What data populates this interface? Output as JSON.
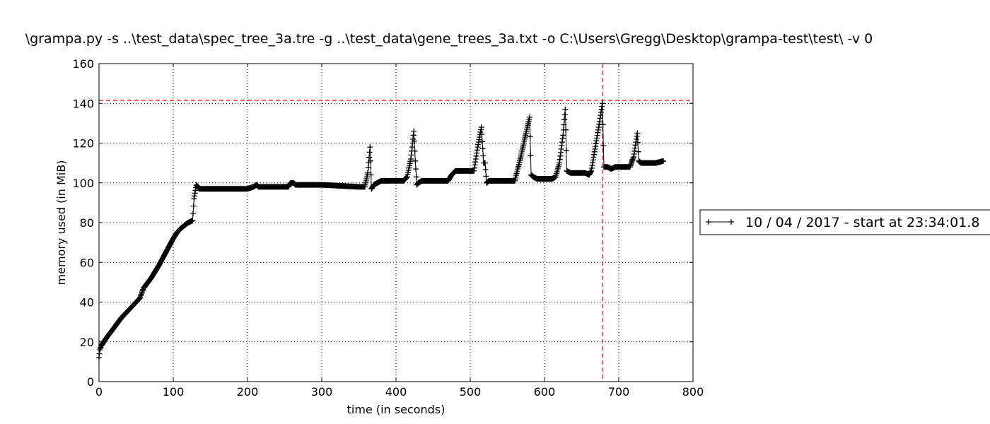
{
  "chart_data": {
    "type": "line",
    "title": "\\grampa.py -s ..\\test_data\\spec_tree_3a.tre -g ..\\test_data\\gene_trees_3a.txt -o C:\\Users\\Gregg\\Desktop\\grampa-test\\test\\ -v 0",
    "xlabel": "time (in seconds)",
    "ylabel": "memory used (in MiB)",
    "xlim": [
      0,
      800
    ],
    "ylim": [
      0,
      160
    ],
    "xticks": [
      "0",
      "100",
      "200",
      "300",
      "400",
      "500",
      "600",
      "700",
      "800"
    ],
    "yticks": [
      "0",
      "20",
      "40",
      "60",
      "80",
      "100",
      "120",
      "140",
      "160"
    ],
    "grid": true,
    "legend_position": "right",
    "marker": "+",
    "series": [
      {
        "name": "10 / 04 / 2017 - start at 23:34:01.8",
        "color": "#000000",
        "x": [
          0,
          1,
          3,
          10,
          20,
          30,
          40,
          50,
          55,
          60,
          70,
          80,
          90,
          100,
          105,
          110,
          120,
          126,
          128,
          131,
          133,
          135,
          140,
          150,
          200,
          208,
          212,
          215,
          220,
          255,
          258,
          262,
          265,
          300,
          350,
          358,
          362,
          365,
          367,
          370,
          375,
          380,
          390,
          410,
          415,
          420,
          424,
          426,
          428,
          430,
          435,
          440,
          470,
          475,
          480,
          500,
          505,
          510,
          515,
          518,
          520,
          522,
          525,
          530,
          560,
          568,
          575,
          580,
          582,
          585,
          590,
          610,
          615,
          620,
          625,
          628,
          630,
          635,
          655,
          660,
          663,
          668,
          673,
          678,
          680,
          685,
          690,
          695,
          715,
          720,
          725,
          727,
          730,
          740,
          750,
          760
        ],
        "values": [
          12,
          16,
          18,
          22,
          27,
          32,
          36,
          40,
          42,
          47,
          52,
          58,
          65,
          72,
          75,
          77,
          80,
          81,
          92,
          99,
          98,
          97,
          97,
          97,
          97,
          98,
          99,
          98,
          98,
          98,
          100,
          100,
          99,
          99,
          98,
          98,
          105,
          118,
          97,
          99,
          100,
          101,
          101,
          101,
          103,
          112,
          126,
          111,
          99,
          100,
          101,
          101,
          101,
          104,
          106,
          106,
          106,
          118,
          128,
          110,
          110,
          100,
          101,
          101,
          101,
          113,
          125,
          133,
          104,
          103,
          102,
          102,
          103,
          110,
          124,
          137,
          106,
          105,
          105,
          104,
          106,
          117,
          128,
          140,
          108,
          108,
          107,
          108,
          108,
          113,
          125,
          111,
          110,
          110,
          110,
          111
        ]
      }
    ],
    "annotations": [
      {
        "type": "hline",
        "y": 141.5,
        "color": "#ff0000",
        "style": "dashed"
      },
      {
        "type": "vline",
        "x": 678,
        "color": "#ff0000",
        "style": "dashed"
      }
    ]
  }
}
